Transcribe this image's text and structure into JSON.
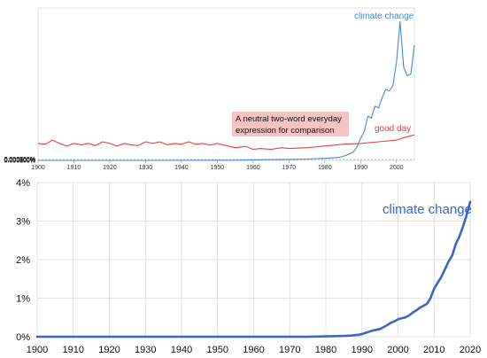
{
  "chart_data": [
    {
      "type": "line",
      "title": "",
      "xlabel": "",
      "ylabel": "",
      "xlim": [
        1900,
        2005
      ],
      "ylim": [
        0,
        0.0009
      ],
      "x_ticks": [
        "1900",
        "1910",
        "1920",
        "1930",
        "1940",
        "1950",
        "1960",
        "1970",
        "1980",
        "1990",
        "2000"
      ],
      "y_ticks": [
        "0.000000%",
        "0.000100%",
        "0.000200%",
        "0.000300%",
        "0.000400%",
        "0.000500%",
        "0.000600%",
        "0.000700%",
        "0.000800%",
        "0.000900%"
      ],
      "grid": "horizontal dashed",
      "annotation": "A neutral two-word everyday expression for comparison",
      "series": [
        {
          "name": "climate change",
          "color": "#4a86d0",
          "x": [
            1900,
            1930,
            1955,
            1960,
            1965,
            1970,
            1975,
            1980,
            1984,
            1986,
            1988,
            1989,
            1990,
            1991,
            1992,
            1993,
            1994,
            1995,
            1996,
            1997,
            1998,
            1999,
            2000,
            2001,
            2002,
            2003,
            2004,
            2005
          ],
          "values": [
            0,
            0,
            1e-06,
            3e-06,
            4e-06,
            6e-06,
            8e-06,
            1.2e-05,
            1.8e-05,
            3e-05,
            5e-05,
            8e-05,
            0.00013,
            0.00017,
            0.00026,
            0.00025,
            0.00032,
            0.00031,
            0.00037,
            0.00042,
            0.00041,
            0.00044,
            0.00058,
            0.00082,
            0.00055,
            0.0005,
            0.00051,
            0.00068
          ]
        },
        {
          "name": "good day",
          "color": "#e8403f",
          "x": [
            1900,
            1902,
            1904,
            1906,
            1908,
            1910,
            1912,
            1914,
            1916,
            1918,
            1920,
            1922,
            1924,
            1926,
            1928,
            1930,
            1932,
            1934,
            1936,
            1938,
            1940,
            1942,
            1944,
            1946,
            1948,
            1950,
            1952,
            1955,
            1958,
            1960,
            1962,
            1965,
            1968,
            1970,
            1975,
            1980,
            1985,
            1990,
            1995,
            2000,
            2003,
            2005
          ],
          "values": [
            0.0001,
            9.5e-05,
            0.00012,
            0.0001,
            8.5e-05,
            0.0001,
            9.2e-05,
            0.0001,
            8.8e-05,
            0.00011,
            0.0001,
            8.5e-05,
            0.0001,
            9.2e-05,
            8.8e-05,
            0.00011,
            0.0001,
            0.00011,
            9.2e-05,
            0.0001,
            9.5e-05,
            0.00011,
            9.5e-05,
            0.0001,
            9e-05,
            0.0001,
            9e-05,
            7.5e-05,
            8.2e-05,
            6.5e-05,
            7e-05,
            6.5e-05,
            7.5e-05,
            7e-05,
            7.5e-05,
            8.5e-05,
            9.5e-05,
            0.0001,
            0.00011,
            0.00012,
            0.00014,
            0.00015
          ]
        }
      ]
    },
    {
      "type": "line",
      "title": "",
      "xlabel": "",
      "ylabel": "",
      "xlim": [
        1900,
        2020
      ],
      "ylim": [
        0,
        4
      ],
      "x_ticks": [
        "1900",
        "1910",
        "1920",
        "1930",
        "1940",
        "1950",
        "1960",
        "1970",
        "1980",
        "1990",
        "2000",
        "2010",
        "2020"
      ],
      "y_ticks": [
        "0%",
        "1%",
        "2%",
        "3%",
        "4%"
      ],
      "grid": "vertical and horizontal",
      "series": [
        {
          "name": "climate change",
          "color": "#3f63c6",
          "x": [
            1900,
            1950,
            1975,
            1980,
            1985,
            1987,
            1989,
            1990,
            1991,
            1992,
            1993,
            1994,
            1995,
            1996,
            1997,
            1998,
            1999,
            2000,
            2001,
            2002,
            2003,
            2004,
            2005,
            2006,
            2007,
            2008,
            2009,
            2010,
            2011,
            2012,
            2013,
            2014,
            2015,
            2016,
            2017,
            2018,
            2019,
            2020
          ],
          "values": [
            0,
            0,
            0,
            0.01,
            0.02,
            0.03,
            0.05,
            0.07,
            0.1,
            0.13,
            0.16,
            0.18,
            0.2,
            0.25,
            0.3,
            0.36,
            0.4,
            0.45,
            0.48,
            0.5,
            0.55,
            0.62,
            0.68,
            0.75,
            0.8,
            0.85,
            1.0,
            1.25,
            1.4,
            1.55,
            1.75,
            1.95,
            2.1,
            2.4,
            2.6,
            2.85,
            3.15,
            3.5
          ]
        }
      ]
    }
  ]
}
